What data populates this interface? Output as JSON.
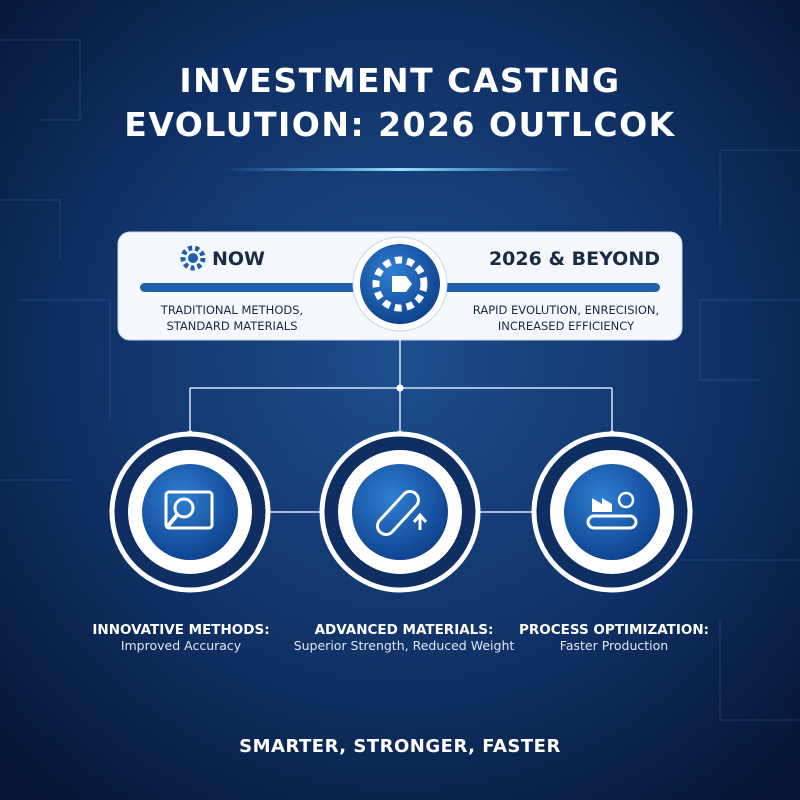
{
  "header": {
    "title_lines": [
      "INVESTMENT CASTING",
      "EVOLUTION: 2026 OUTLCOK"
    ]
  },
  "timeline": {
    "now": {
      "label": "NOW",
      "description": [
        "TRADITIONAL METHODS,",
        "STANDARD MATERIALS"
      ]
    },
    "future": {
      "label": "2026 & BEYOND",
      "description": [
        "RAPID EVOLUTION, ENRECISION,",
        "INCREASED EFFICIENCY"
      ]
    }
  },
  "features": [
    {
      "title": "INNOVATIVE METHODS:",
      "subtitle": "Improved Accuracy"
    },
    {
      "title": "ADVANCED MATERIALS:",
      "subtitle": "Superior Strength, Reduced Weight"
    },
    {
      "title": "PROCESS OPTIMIZATION:",
      "subtitle": "Faster Production"
    }
  ],
  "footer": "SMARTER, STRONGER, FASTER"
}
